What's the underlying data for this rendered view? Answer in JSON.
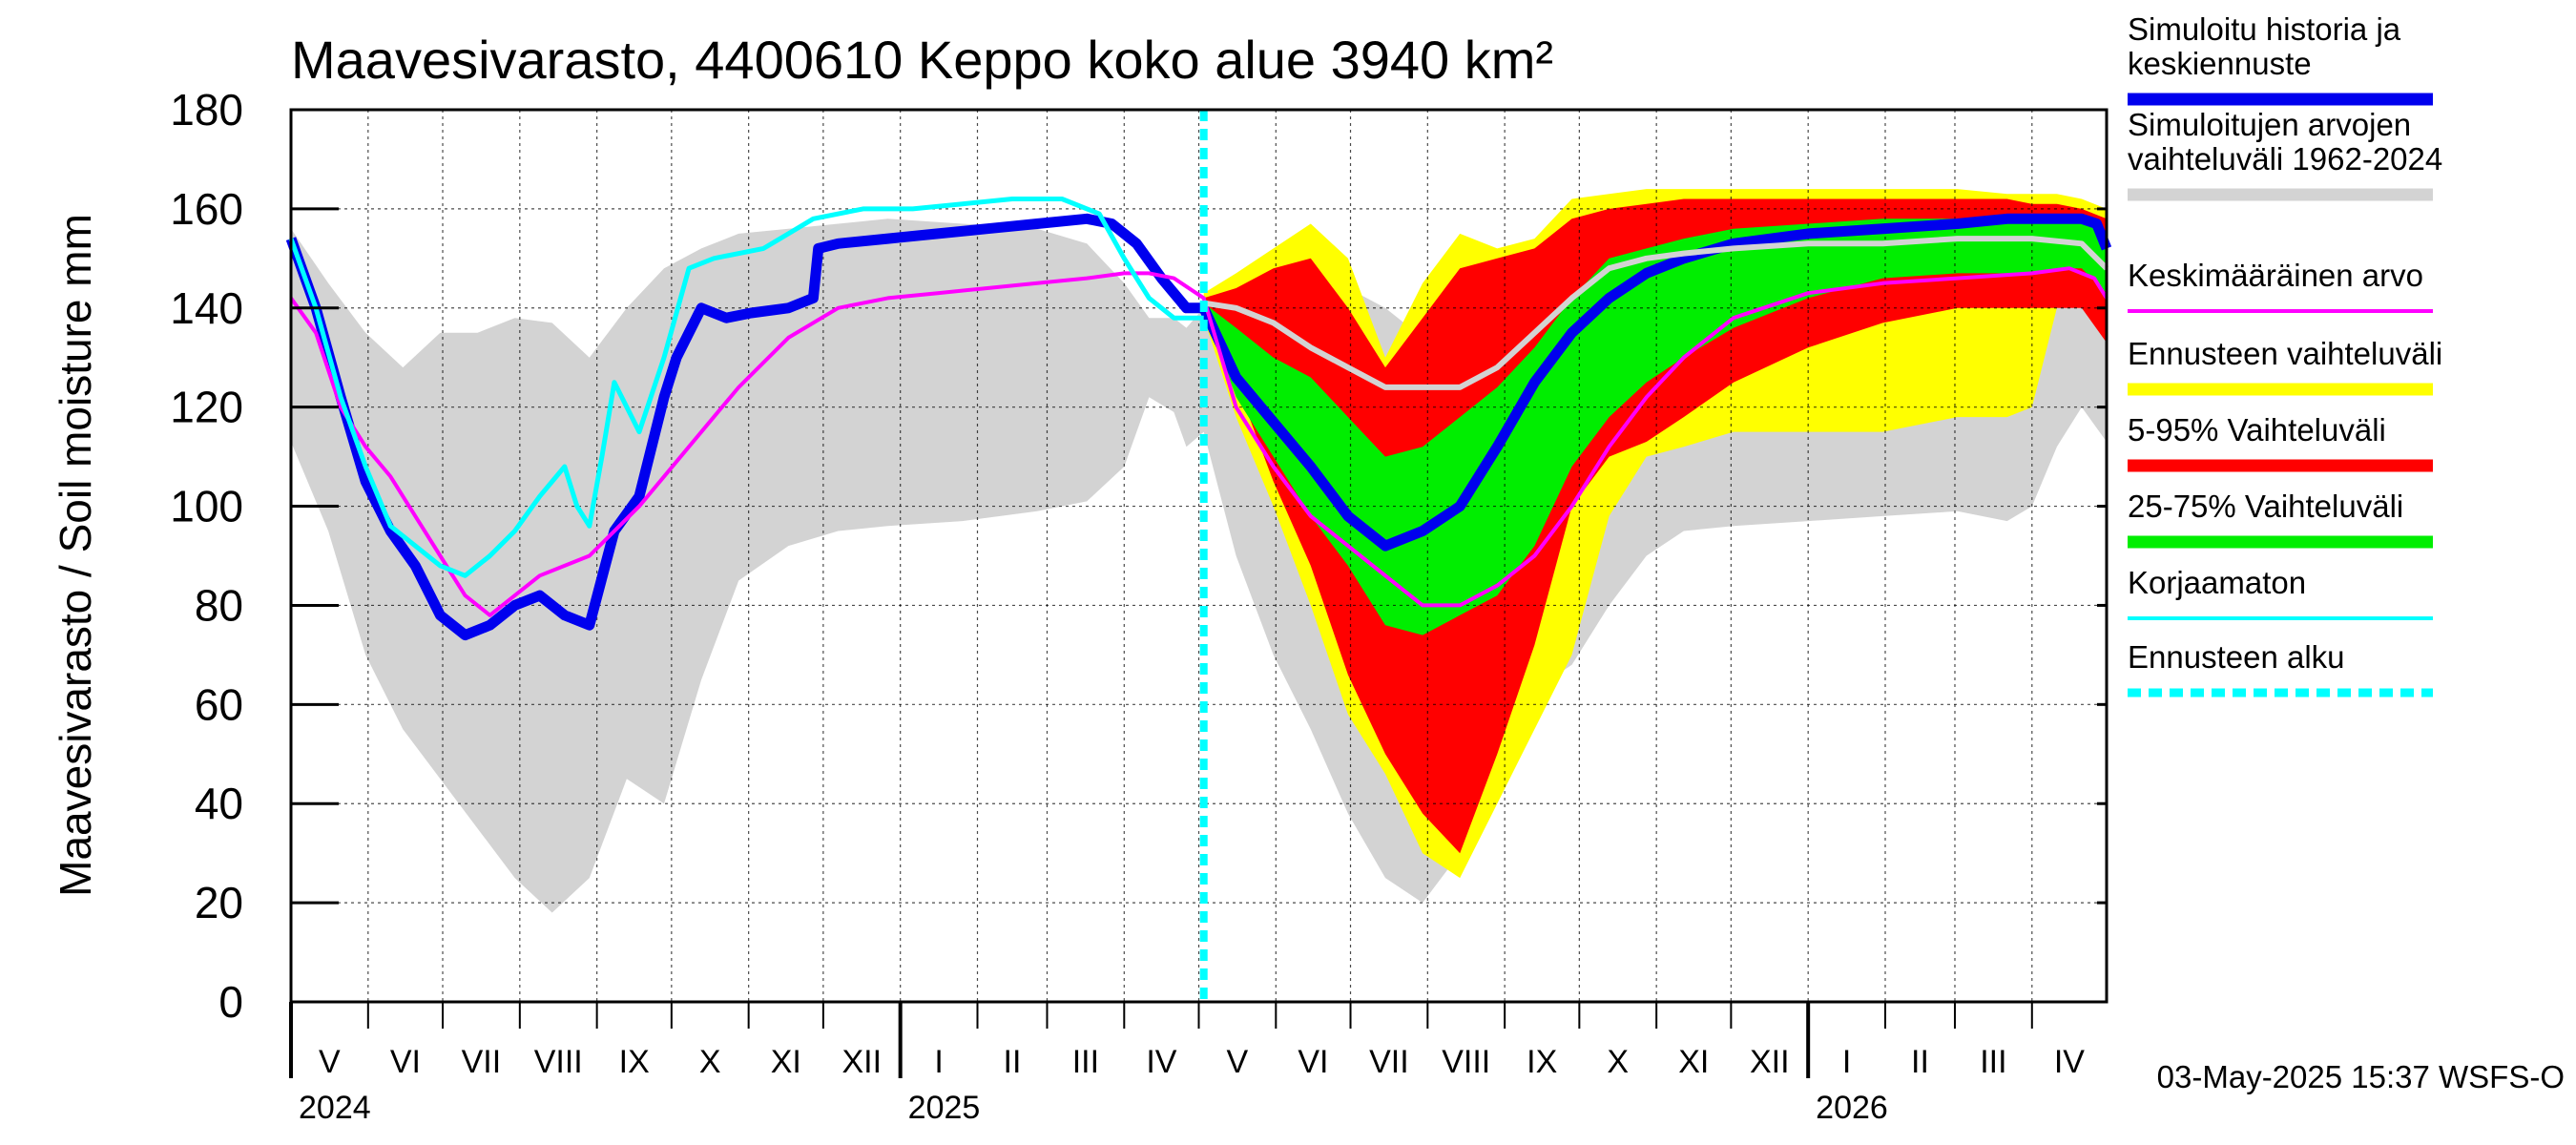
{
  "chart_data": {
    "type": "area",
    "title": "Maavesivarasto, 4400610 Keppo koko alue 3940 km²",
    "ylabel": "Maavesivarasto / Soil moisture   mm",
    "ylim": [
      0,
      180
    ],
    "yticks": [
      0,
      20,
      40,
      60,
      80,
      100,
      120,
      140,
      160,
      180
    ],
    "x_range_days": [
      0,
      730
    ],
    "months": [
      {
        "label": "V",
        "start": 0
      },
      {
        "label": "VI",
        "start": 31
      },
      {
        "label": "VII",
        "start": 61
      },
      {
        "label": "VIII",
        "start": 92
      },
      {
        "label": "IX",
        "start": 123
      },
      {
        "label": "X",
        "start": 153
      },
      {
        "label": "XI",
        "start": 184
      },
      {
        "label": "XII",
        "start": 214
      },
      {
        "label": "I",
        "start": 245
      },
      {
        "label": "II",
        "start": 276
      },
      {
        "label": "III",
        "start": 304
      },
      {
        "label": "IV",
        "start": 335
      },
      {
        "label": "V",
        "start": 365
      },
      {
        "label": "VI",
        "start": 396
      },
      {
        "label": "VII",
        "start": 426
      },
      {
        "label": "VIII",
        "start": 457
      },
      {
        "label": "IX",
        "start": 488
      },
      {
        "label": "X",
        "start": 518
      },
      {
        "label": "XI",
        "start": 549
      },
      {
        "label": "XII",
        "start": 579
      },
      {
        "label": "I",
        "start": 610
      },
      {
        "label": "II",
        "start": 641
      },
      {
        "label": "III",
        "start": 669
      },
      {
        "label": "IV",
        "start": 700
      }
    ],
    "year_ticks": [
      {
        "label": "2024",
        "day": 0
      },
      {
        "label": "2025",
        "day": 245
      },
      {
        "label": "2026",
        "day": 610
      }
    ],
    "forecast_start_day": 367,
    "series": [
      {
        "name": "historical_range",
        "color": "#d3d3d3",
        "kind": "band",
        "x": [
          0,
          15,
          30,
          45,
          60,
          75,
          90,
          105,
          120,
          135,
          150,
          165,
          180,
          200,
          220,
          240,
          270,
          300,
          320,
          335,
          345,
          355,
          360,
          367,
          380,
          395,
          410,
          425,
          440,
          455,
          470,
          485,
          500,
          515,
          530,
          545,
          560,
          580,
          610,
          640,
          670,
          690,
          700,
          710,
          720,
          730
        ],
        "upper": [
          156,
          145,
          135,
          128,
          135,
          135,
          138,
          137,
          130,
          140,
          148,
          152,
          155,
          156,
          157,
          158,
          157,
          156,
          153,
          145,
          138,
          138,
          136,
          140,
          146,
          147,
          146,
          144,
          140,
          134,
          131,
          140,
          145,
          150,
          152,
          153,
          155,
          155,
          155,
          155,
          155,
          154,
          145,
          143,
          148,
          135
        ],
        "lower": [
          113,
          95,
          70,
          55,
          45,
          35,
          25,
          18,
          25,
          45,
          40,
          65,
          85,
          92,
          95,
          96,
          97,
          99,
          101,
          108,
          122,
          119,
          112,
          115,
          90,
          70,
          55,
          38,
          25,
          20,
          30,
          52,
          63,
          68,
          80,
          90,
          95,
          96,
          97,
          98,
          99,
          97,
          100,
          112,
          120,
          113
        ]
      },
      {
        "name": "forecast_range",
        "color": "#ffff00",
        "kind": "band",
        "x": [
          367,
          380,
          395,
          410,
          425,
          440,
          455,
          470,
          485,
          500,
          515,
          530,
          545,
          560,
          580,
          610,
          640,
          670,
          690,
          700,
          710,
          720,
          730
        ],
        "upper": [
          143,
          147,
          152,
          157,
          150,
          130,
          145,
          155,
          152,
          154,
          162,
          163,
          164,
          164,
          164,
          164,
          164,
          164,
          163,
          163,
          163,
          162,
          160
        ],
        "lower": [
          138,
          118,
          100,
          80,
          58,
          46,
          30,
          25,
          40,
          55,
          70,
          98,
          110,
          112,
          115,
          115,
          115,
          118,
          118,
          120,
          140,
          148,
          135
        ]
      },
      {
        "name": "p5_95",
        "color": "#ff0000",
        "kind": "band",
        "x": [
          367,
          380,
          395,
          410,
          425,
          440,
          455,
          470,
          485,
          500,
          515,
          530,
          545,
          560,
          580,
          610,
          640,
          670,
          690,
          700,
          710,
          720,
          730
        ],
        "upper": [
          142,
          144,
          148,
          150,
          140,
          128,
          138,
          148,
          150,
          152,
          158,
          160,
          161,
          162,
          162,
          162,
          162,
          162,
          162,
          161,
          161,
          160,
          158
        ],
        "lower": [
          139,
          125,
          105,
          88,
          66,
          50,
          38,
          30,
          50,
          72,
          100,
          110,
          113,
          118,
          125,
          132,
          137,
          140,
          140,
          140,
          140,
          140,
          133
        ]
      },
      {
        "name": "p25_75",
        "color": "#00ee00",
        "kind": "band",
        "x": [
          367,
          380,
          395,
          410,
          425,
          440,
          455,
          470,
          485,
          500,
          515,
          530,
          545,
          560,
          580,
          610,
          640,
          670,
          690,
          700,
          710,
          720,
          730
        ],
        "upper": [
          141,
          136,
          130,
          126,
          118,
          110,
          112,
          118,
          124,
          132,
          142,
          150,
          152,
          154,
          156,
          157,
          158,
          158,
          158,
          158,
          158,
          158,
          155
        ],
        "lower": [
          140,
          122,
          110,
          98,
          88,
          76,
          74,
          78,
          82,
          92,
          108,
          118,
          125,
          130,
          136,
          142,
          146,
          147,
          147,
          147,
          148,
          148,
          143
        ]
      },
      {
        "name": "Simuloitu historia ja keskiennuste",
        "color": "#0000ee",
        "kind": "line",
        "width": 11,
        "x": [
          0,
          10,
          20,
          30,
          40,
          50,
          60,
          70,
          80,
          90,
          100,
          110,
          120,
          130,
          140,
          150,
          155,
          165,
          175,
          185,
          200,
          210,
          212,
          220,
          240,
          260,
          280,
          300,
          320,
          330,
          340,
          350,
          360,
          367,
          380,
          395,
          410,
          425,
          440,
          455,
          470,
          485,
          500,
          515,
          530,
          545,
          560,
          580,
          610,
          640,
          670,
          690,
          700,
          710,
          720,
          726,
          730
        ],
        "y": [
          154,
          140,
          122,
          105,
          95,
          88,
          78,
          74,
          76,
          80,
          82,
          78,
          76,
          95,
          102,
          122,
          130,
          140,
          138,
          139,
          140,
          142,
          152,
          153,
          154,
          155,
          156,
          157,
          158,
          157,
          153,
          146,
          140,
          140,
          126,
          117,
          108,
          98,
          92,
          95,
          100,
          112,
          125,
          135,
          142,
          147,
          150,
          153,
          155,
          156,
          157,
          158,
          158,
          158,
          158,
          157,
          152
        ]
      },
      {
        "name": "Keskimääräinen arvo",
        "color": "#ff00ff",
        "kind": "line",
        "width": 4,
        "x": [
          0,
          10,
          20,
          30,
          40,
          50,
          60,
          70,
          80,
          90,
          100,
          110,
          120,
          140,
          160,
          180,
          200,
          220,
          240,
          260,
          280,
          300,
          320,
          335,
          345,
          355,
          367,
          380,
          395,
          410,
          425,
          440,
          455,
          470,
          485,
          500,
          515,
          530,
          545,
          560,
          580,
          610,
          640,
          670,
          700,
          715,
          725,
          730
        ],
        "y": [
          142,
          135,
          120,
          112,
          106,
          98,
          90,
          82,
          78,
          82,
          86,
          88,
          90,
          100,
          112,
          124,
          134,
          140,
          142,
          143,
          144,
          145,
          146,
          147,
          147,
          146,
          142,
          120,
          108,
          98,
          92,
          86,
          80,
          80,
          84,
          90,
          100,
          112,
          122,
          130,
          138,
          143,
          145,
          146,
          147,
          148,
          146,
          142
        ]
      },
      {
        "name": "Simuloitujen arvojen vaihteluväli 1962-2024 (median)",
        "color": "#d3d3d3",
        "kind": "line",
        "width": 6,
        "x": [
          367,
          380,
          395,
          410,
          425,
          440,
          455,
          470,
          485,
          500,
          515,
          530,
          545,
          560,
          580,
          610,
          640,
          670,
          700,
          720,
          730
        ],
        "y": [
          141,
          140,
          137,
          132,
          128,
          124,
          124,
          124,
          128,
          135,
          142,
          148,
          150,
          151,
          152,
          153,
          153,
          154,
          154,
          153,
          148
        ]
      },
      {
        "name": "Korjaamaton",
        "color": "#00ffff",
        "kind": "line",
        "width": 5,
        "x": [
          0,
          10,
          20,
          30,
          40,
          50,
          60,
          70,
          80,
          90,
          100,
          110,
          115,
          120,
          125,
          130,
          140,
          150,
          160,
          170,
          190,
          200,
          210,
          230,
          250,
          270,
          290,
          310,
          325,
          335,
          345,
          355,
          367
        ],
        "y": [
          154,
          140,
          122,
          108,
          96,
          92,
          88,
          86,
          90,
          95,
          102,
          108,
          100,
          96,
          110,
          125,
          115,
          130,
          148,
          150,
          152,
          155,
          158,
          160,
          160,
          161,
          162,
          162,
          159,
          150,
          142,
          138,
          138
        ]
      }
    ],
    "legend": [
      {
        "label": "Simuloitu historia ja keskiennuste",
        "color": "#0000ee",
        "style": "thick"
      },
      {
        "label": "Simuloitujen arvojen vaihteluväli 1962-2024",
        "color": "#d3d3d3",
        "style": "thick"
      },
      {
        "label": "Keskimääräinen arvo",
        "color": "#ff00ff",
        "style": "thin"
      },
      {
        "label": "Ennusteen vaihteluväli",
        "color": "#ffff00",
        "style": "thick"
      },
      {
        "label": "5-95% Vaihteluväli",
        "color": "#ff0000",
        "style": "thick"
      },
      {
        "label": "25-75% Vaihteluväli",
        "color": "#00ee00",
        "style": "thick"
      },
      {
        "label": "Korjaamaton",
        "color": "#00ffff",
        "style": "thin"
      },
      {
        "label": "Ennusteen alku",
        "color": "#00ffff",
        "style": "dashed"
      }
    ],
    "footer": "03-May-2025 15:37 WSFS-O"
  }
}
